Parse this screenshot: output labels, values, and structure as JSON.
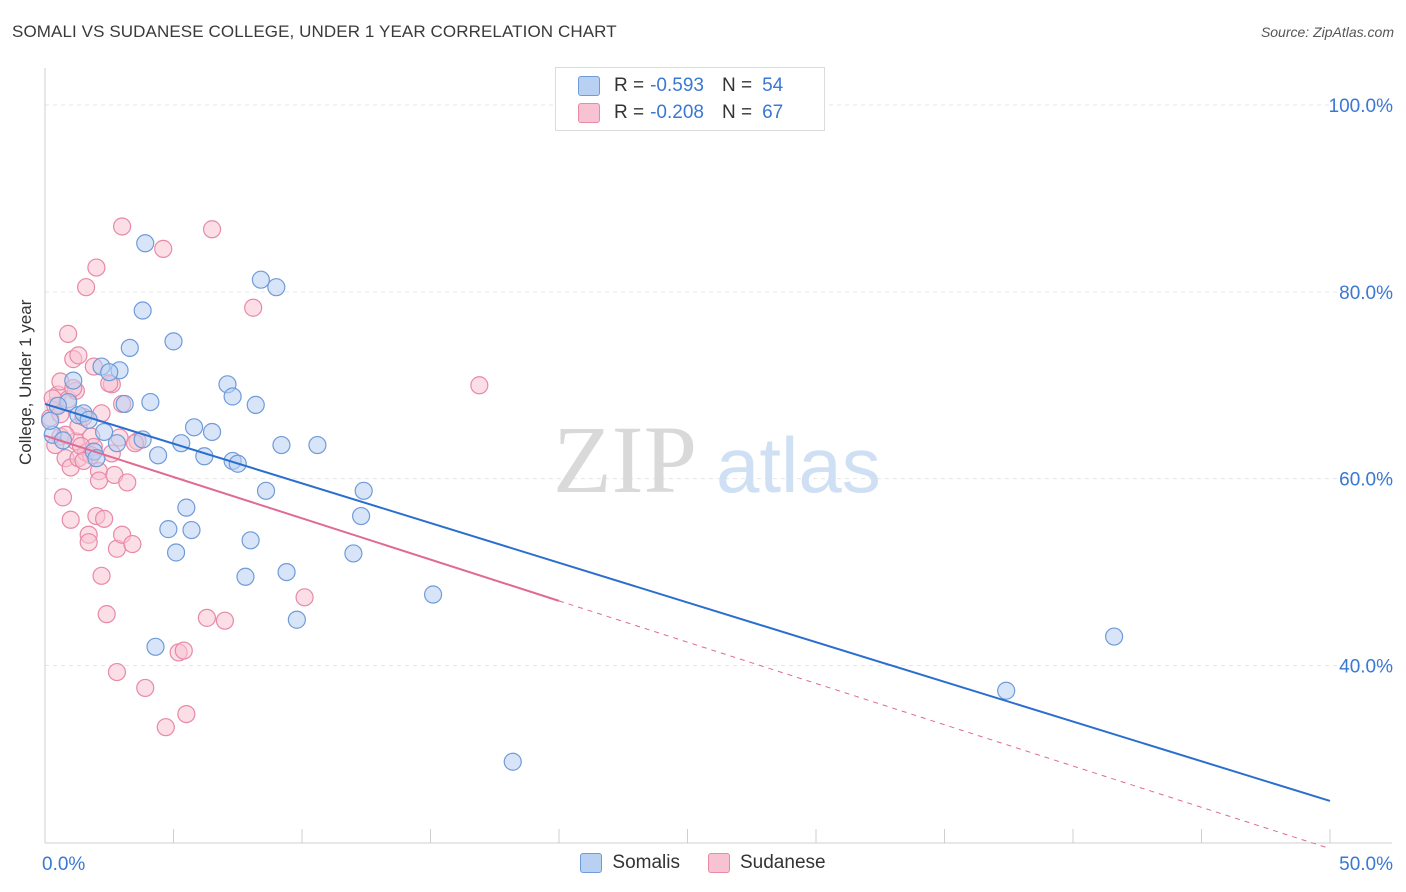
{
  "title": "SOMALI VS SUDANESE COLLEGE, UNDER 1 YEAR CORRELATION CHART",
  "source": "Source: ZipAtlas.com",
  "watermark": {
    "zip": "ZIP",
    "atlas": "atlas"
  },
  "colors": {
    "somali_fill": "#b8d0f2",
    "somali_stroke": "#6f9bd9",
    "somali_line": "#2a6fcf",
    "sudanese_fill": "#f7c3d2",
    "sudanese_stroke": "#e889a8",
    "sudanese_line": "#e06a93",
    "axis_text": "#3a78d4",
    "grid": "#e6e6e6"
  },
  "legend": {
    "rows": [
      {
        "r_label": "R =",
        "r_value": "-0.593",
        "n_label": "N =",
        "n_value": "54"
      },
      {
        "r_label": "R =",
        "r_value": "-0.208",
        "n_label": "N =",
        "n_value": "67"
      }
    ]
  },
  "bottom_legend": [
    "Somalis",
    "Sudanese"
  ],
  "chart_data": {
    "type": "scatter",
    "xlabel": "",
    "ylabel": "College, Under 1 year",
    "xlim": [
      0,
      50
    ],
    "ylim": [
      21,
      103
    ],
    "x_tick_labels": [
      "0.0%",
      "50.0%"
    ],
    "y_ticks": [
      40,
      60,
      80,
      100
    ],
    "y_tick_labels": [
      "40.0%",
      "60.0%",
      "80.0%",
      "100.0%"
    ],
    "grid": true,
    "series": [
      {
        "name": "Somalis",
        "points": [
          [
            0.3,
            64.7
          ],
          [
            0.9,
            68.2
          ],
          [
            1.1,
            70.5
          ],
          [
            1.3,
            66.8
          ],
          [
            1.5,
            67.0
          ],
          [
            1.9,
            62.9
          ],
          [
            2.0,
            62.2
          ],
          [
            2.2,
            72.0
          ],
          [
            2.3,
            65.0
          ],
          [
            2.8,
            63.8
          ],
          [
            2.9,
            71.6
          ],
          [
            3.1,
            68.0
          ],
          [
            3.3,
            74.0
          ],
          [
            3.8,
            78.0
          ],
          [
            3.8,
            64.2
          ],
          [
            3.9,
            85.2
          ],
          [
            4.1,
            68.2
          ],
          [
            4.3,
            42.0
          ],
          [
            4.4,
            62.5
          ],
          [
            4.8,
            54.6
          ],
          [
            5.0,
            74.7
          ],
          [
            5.1,
            52.1
          ],
          [
            5.3,
            63.8
          ],
          [
            5.5,
            56.9
          ],
          [
            5.7,
            54.5
          ],
          [
            5.8,
            65.5
          ],
          [
            6.2,
            62.4
          ],
          [
            6.5,
            65.0
          ],
          [
            7.1,
            70.1
          ],
          [
            7.3,
            68.8
          ],
          [
            7.3,
            61.9
          ],
          [
            7.5,
            61.6
          ],
          [
            7.8,
            49.5
          ],
          [
            8.0,
            53.4
          ],
          [
            8.2,
            67.9
          ],
          [
            8.4,
            81.3
          ],
          [
            8.6,
            58.7
          ],
          [
            9.0,
            80.5
          ],
          [
            9.2,
            63.6
          ],
          [
            9.4,
            50.0
          ],
          [
            9.8,
            44.9
          ],
          [
            10.6,
            63.6
          ],
          [
            12.0,
            52.0
          ],
          [
            12.3,
            56.0
          ],
          [
            12.4,
            58.7
          ],
          [
            15.1,
            47.6
          ],
          [
            18.2,
            29.7
          ],
          [
            37.4,
            37.3
          ],
          [
            41.6,
            43.1
          ],
          [
            0.2,
            66.2
          ],
          [
            0.5,
            67.8
          ],
          [
            0.7,
            64.1
          ],
          [
            1.7,
            66.3
          ],
          [
            2.5,
            71.4
          ]
        ],
        "trend": {
          "x": [
            0,
            50
          ],
          "y": [
            68.0,
            25.5
          ],
          "dashed_from": null
        }
      },
      {
        "name": "Sudanese",
        "points": [
          [
            0.2,
            66.5
          ],
          [
            0.4,
            67.8
          ],
          [
            0.5,
            69.0
          ],
          [
            0.6,
            64.5
          ],
          [
            0.6,
            70.4
          ],
          [
            0.7,
            58.0
          ],
          [
            0.8,
            62.2
          ],
          [
            0.9,
            75.5
          ],
          [
            0.9,
            68.5
          ],
          [
            1.0,
            55.6
          ],
          [
            1.0,
            61.2
          ],
          [
            1.1,
            72.8
          ],
          [
            1.2,
            64.0
          ],
          [
            1.2,
            69.4
          ],
          [
            1.3,
            73.2
          ],
          [
            1.3,
            65.6
          ],
          [
            1.3,
            62.2
          ],
          [
            1.5,
            66.6
          ],
          [
            1.6,
            62.8
          ],
          [
            1.6,
            80.5
          ],
          [
            1.7,
            54.0
          ],
          [
            1.7,
            53.2
          ],
          [
            1.8,
            64.5
          ],
          [
            1.9,
            63.4
          ],
          [
            1.9,
            72.0
          ],
          [
            2.0,
            82.6
          ],
          [
            2.0,
            56.0
          ],
          [
            2.1,
            60.8
          ],
          [
            2.1,
            59.8
          ],
          [
            2.2,
            49.6
          ],
          [
            2.3,
            55.7
          ],
          [
            2.4,
            45.5
          ],
          [
            2.6,
            62.7
          ],
          [
            2.6,
            70.1
          ],
          [
            2.7,
            60.4
          ],
          [
            2.8,
            52.5
          ],
          [
            2.8,
            39.3
          ],
          [
            3.0,
            54.0
          ],
          [
            3.0,
            68.0
          ],
          [
            3.0,
            87.0
          ],
          [
            3.2,
            59.6
          ],
          [
            3.4,
            53.0
          ],
          [
            3.6,
            64.0
          ],
          [
            3.9,
            37.6
          ],
          [
            4.6,
            84.6
          ],
          [
            4.7,
            33.4
          ],
          [
            5.2,
            41.4
          ],
          [
            5.4,
            41.6
          ],
          [
            5.5,
            34.8
          ],
          [
            6.3,
            45.1
          ],
          [
            6.5,
            86.7
          ],
          [
            7.0,
            44.8
          ],
          [
            8.1,
            78.3
          ],
          [
            10.1,
            47.3
          ],
          [
            16.9,
            70.0
          ],
          [
            0.3,
            68.6
          ],
          [
            0.8,
            64.7
          ],
          [
            1.4,
            63.5
          ],
          [
            2.2,
            67.0
          ],
          [
            2.5,
            70.2
          ],
          [
            3.5,
            63.8
          ],
          [
            0.4,
            63.6
          ],
          [
            1.1,
            69.7
          ],
          [
            1.8,
            62.5
          ],
          [
            0.6,
            66.9
          ],
          [
            2.9,
            64.4
          ],
          [
            1.5,
            61.9
          ]
        ],
        "trend": {
          "x": [
            0,
            50
          ],
          "y": [
            64.6,
            20.4
          ],
          "dashed_from": 20
        }
      }
    ]
  }
}
